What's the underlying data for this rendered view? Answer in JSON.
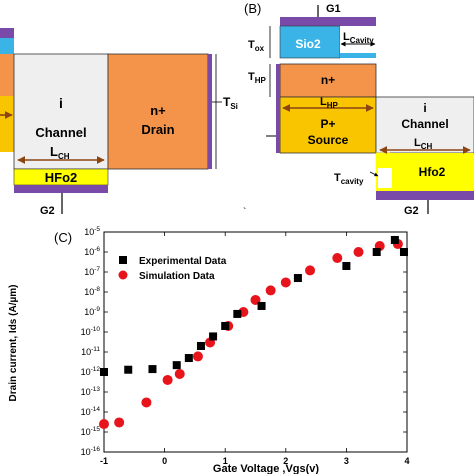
{
  "panelA": {
    "region_i": "i",
    "region_channel": "Channel",
    "lch_main": "L",
    "lch_sub": "CH",
    "region_nplus": "n+",
    "region_drain": "Drain",
    "tsi_main": "T",
    "tsi_sub": "Si",
    "dielectric": "HFo2",
    "gate_bottom": "G2"
  },
  "panelB": {
    "panel_label": "(B)",
    "gate_top": "G1",
    "oxide": "Sio2",
    "lcavity_main": "L",
    "lcavity_sub": "Cavity",
    "tox_main": "T",
    "tox_sub": "ox",
    "thp_main": "T",
    "thp_sub": "HP",
    "region_nplus": "n+",
    "lhp_main": "L",
    "lhp_sub": "HP",
    "region_pplus": "P+",
    "region_source": "Source",
    "region_i": "i",
    "region_channel": "Channel",
    "lch_main": "L",
    "lch_sub": "CH",
    "tcavity_main": "T",
    "tcavity_sub": "cavity",
    "dielectric": "Hfo2",
    "gate_bottom": "G2",
    "stray_mark": "`"
  },
  "panelC": {
    "panel_label": "(C)"
  },
  "colors": {
    "orange": "#f4934a",
    "yellow": "#f9c500",
    "bright_yellow": "#ffff00",
    "purple": "#7a4aa8",
    "cyan": "#3ab4e6",
    "channel_gray": "#efefef",
    "brown_arrow": "#8b4513",
    "experimental": "#000000",
    "simulation": "#e8141c"
  },
  "chart_data": {
    "type": "scatter",
    "title": "",
    "xlabel": "Gate Voltage ,Vgs(v)",
    "ylabel": "Drain current, Ids (A/µm)",
    "xlim": [
      -1,
      4
    ],
    "ylim_exponent": [
      -16,
      -5
    ],
    "y_scale": "log",
    "x_ticks": [
      "-1",
      "0",
      "1",
      "2",
      "3",
      "4"
    ],
    "y_ticks": [
      "10-16",
      "10-15",
      "10-14",
      "10-13",
      "10-12",
      "10-11",
      "10-10",
      "10-9",
      "10-8",
      "10-7",
      "10-6",
      "10-5"
    ],
    "y_tick_base": "10",
    "y_tick_exps": [
      "-16",
      "-15",
      "-14",
      "-13",
      "-12",
      "-11",
      "-10",
      "-9",
      "-8",
      "-7",
      "-6",
      "-5"
    ],
    "legend_placement": "top-left",
    "series": [
      {
        "name": "Experimental Data",
        "marker": "square",
        "points": [
          [
            -1.0,
            1e-12
          ],
          [
            -0.6,
            1.3e-12
          ],
          [
            -0.2,
            1.4e-12
          ],
          [
            0.2,
            2.2e-12
          ],
          [
            0.4,
            5e-12
          ],
          [
            0.6,
            2e-11
          ],
          [
            0.8,
            6e-11
          ],
          [
            1.0,
            2e-10
          ],
          [
            1.2,
            8e-10
          ],
          [
            1.6,
            2e-09
          ],
          [
            2.2,
            5e-08
          ],
          [
            3.0,
            2e-07
          ],
          [
            3.5,
            1e-06
          ],
          [
            3.8,
            4e-06
          ],
          [
            3.95,
            1e-06
          ]
        ]
      },
      {
        "name": "Simulation Data",
        "marker": "circle",
        "points": [
          [
            -1.0,
            2.5e-15
          ],
          [
            -0.75,
            3e-15
          ],
          [
            -0.3,
            3e-14
          ],
          [
            0.05,
            4e-13
          ],
          [
            0.25,
            8e-13
          ],
          [
            0.55,
            6e-12
          ],
          [
            0.75,
            3e-11
          ],
          [
            1.05,
            2e-10
          ],
          [
            1.3,
            1e-09
          ],
          [
            1.5,
            4e-09
          ],
          [
            1.75,
            1.2e-08
          ],
          [
            2.0,
            3e-08
          ],
          [
            2.4,
            1.2e-07
          ],
          [
            2.85,
            5e-07
          ],
          [
            3.2,
            1e-06
          ],
          [
            3.55,
            2e-06
          ],
          [
            3.85,
            2.5e-06
          ]
        ]
      }
    ]
  }
}
